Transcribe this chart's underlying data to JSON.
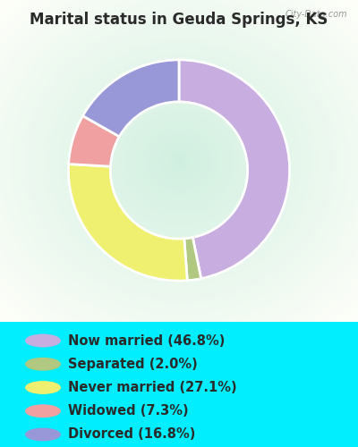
{
  "title": "Marital status in Geuda Springs, KS",
  "slices": [
    46.8,
    2.0,
    27.1,
    7.3,
    16.8
  ],
  "labels": [
    "Now married (46.8%)",
    "Separated (2.0%)",
    "Never married (27.1%)",
    "Widowed (7.3%)",
    "Divorced (16.8%)"
  ],
  "colors": [
    "#c8aee0",
    "#b0c880",
    "#f0f070",
    "#f0a0a0",
    "#9898d8"
  ],
  "bg_cyan": "#00eeff",
  "chart_bg_color": "#ddf0e0",
  "title_color": "#2a2a2a",
  "title_fontsize": 12,
  "legend_fontsize": 10.5,
  "watermark": "City-Data.com",
  "donut_width": 0.38
}
